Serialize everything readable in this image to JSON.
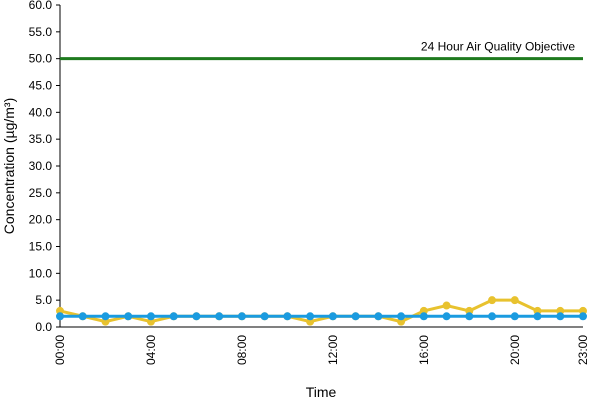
{
  "chart_data": {
    "type": "line",
    "x_label": "Time",
    "y_label": "Concentration (µg/m³)",
    "categories": [
      "00:00",
      null,
      null,
      null,
      "04:00",
      null,
      null,
      null,
      "08:00",
      null,
      null,
      null,
      "12:00",
      null,
      null,
      null,
      "16:00",
      null,
      null,
      null,
      "20:00",
      null,
      null,
      "23:00"
    ],
    "series": [
      {
        "color": "#e8c22e",
        "values": [
          3,
          2,
          1,
          2,
          1,
          2,
          2,
          2,
          2,
          2,
          2,
          1,
          2,
          2,
          2,
          1,
          3,
          4,
          3,
          5,
          5,
          3,
          3,
          3
        ]
      },
      {
        "color": "#1a9be0",
        "values": [
          2,
          2,
          2,
          2,
          2,
          2,
          2,
          2,
          2,
          2,
          2,
          2,
          2,
          2,
          2,
          2,
          2,
          2,
          2,
          2,
          2,
          2,
          2,
          2
        ]
      }
    ],
    "objective": {
      "value": 50,
      "label": "24 Hour Air Quality Objective",
      "color": "#1e7a1e"
    },
    "ylim": [
      0,
      60
    ],
    "yticks": [
      {
        "value": 0,
        "label": "0.0"
      },
      {
        "value": 5,
        "label": "5.0"
      },
      {
        "value": 10,
        "label": "10.0"
      },
      {
        "value": 15,
        "label": "15.0"
      },
      {
        "value": 20,
        "label": "20.0"
      },
      {
        "value": 25,
        "label": "25.0"
      },
      {
        "value": 30,
        "label": "30.0"
      },
      {
        "value": 35,
        "label": "35.0"
      },
      {
        "value": 40,
        "label": "40.0"
      },
      {
        "value": 45,
        "label": "45.0"
      },
      {
        "value": 50,
        "label": "50.0"
      },
      {
        "value": 55,
        "label": "55.0"
      },
      {
        "value": 60,
        "label": "60.0"
      }
    ]
  }
}
